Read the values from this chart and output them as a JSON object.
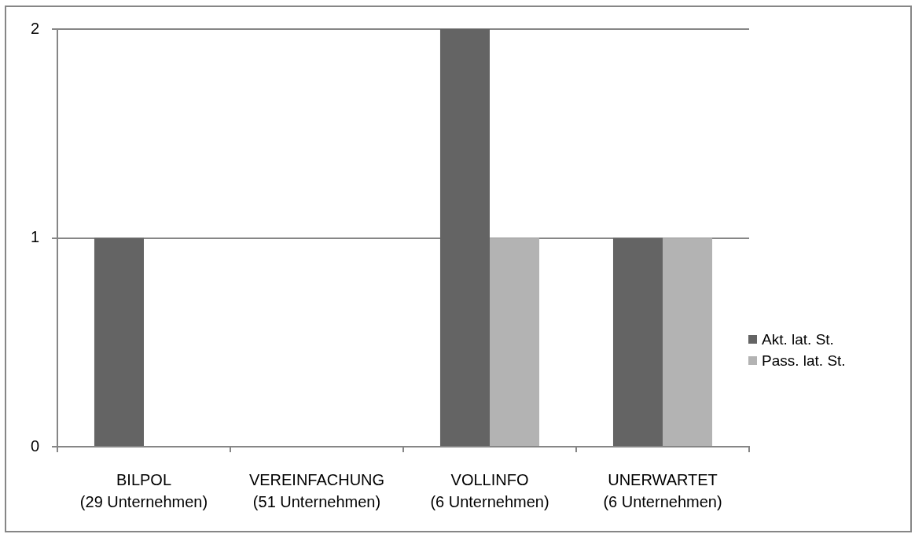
{
  "chart_data": {
    "type": "bar",
    "categories": [
      "BILPOL\n(29 Unternehmen)",
      "VEREINFACHUNG\n(51 Unternehmen)",
      "VOLLINFO\n(6 Unternehmen)",
      "UNERWARTET\n(6 Unternehmen)"
    ],
    "series": [
      {
        "name": "Akt. lat. St.",
        "color": "#646464",
        "values": [
          1,
          0,
          2,
          1
        ]
      },
      {
        "name": "Pass. lat. St.",
        "color": "#b3b3b3",
        "values": [
          0,
          0,
          1,
          1
        ]
      }
    ],
    "ylim": [
      0,
      2
    ],
    "yticks": [
      0,
      1,
      2
    ],
    "grid": "y",
    "legend": "right"
  }
}
